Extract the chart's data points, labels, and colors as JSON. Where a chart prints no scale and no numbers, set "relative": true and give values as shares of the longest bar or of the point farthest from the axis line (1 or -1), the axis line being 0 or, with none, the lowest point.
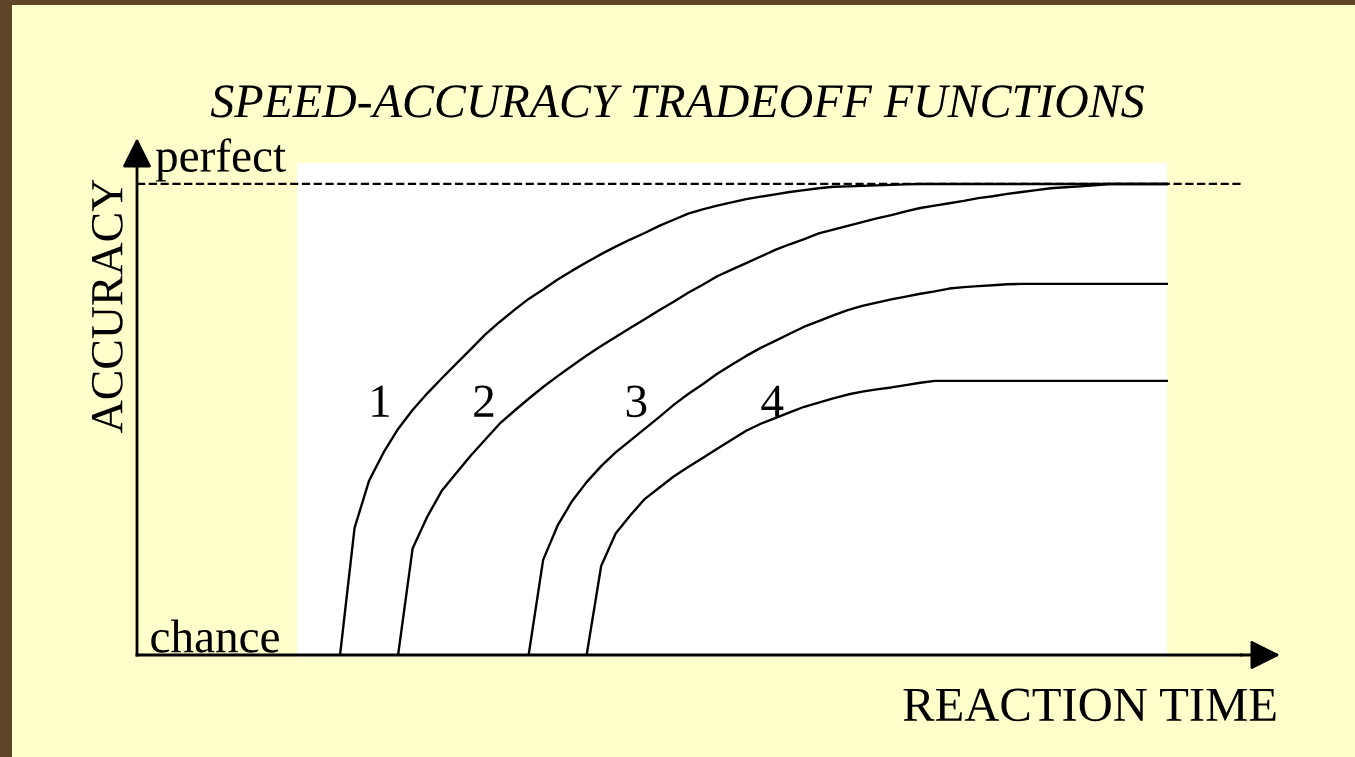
{
  "chart_data": {
    "type": "line",
    "title": "SPEED-ACCURACY TRADEOFF FUNCTIONS",
    "xlabel": "REACTION TIME",
    "ylabel": "ACCURACY",
    "relative": true,
    "categories": [
      null,
      null,
      null,
      null,
      null,
      null,
      null,
      null,
      null,
      null,
      null,
      null,
      null,
      null,
      null,
      null,
      null,
      null,
      null,
      null,
      null,
      null,
      null,
      null,
      null,
      null,
      null,
      null,
      null,
      null,
      null,
      null,
      null,
      null,
      null,
      null,
      null,
      null,
      null,
      null,
      null,
      null,
      null,
      null,
      null,
      null,
      null,
      null,
      null,
      null,
      null,
      null,
      null,
      null,
      null,
      null,
      null,
      null,
      null,
      null,
      null,
      null,
      null,
      null,
      null,
      null,
      null,
      null,
      null,
      null,
      null,
      null
    ],
    "series": [
      {
        "name": "1",
        "color": "#000000",
        "values": [
          null,
          null,
          null,
          null,
          null,
          null,
          null,
          null,
          null,
          null,
          null,
          null,
          null,
          null,
          0,
          0.27,
          0.37,
          0.43,
          0.48,
          0.52,
          0.555,
          0.587,
          0.618,
          0.649,
          0.68,
          0.707,
          0.732,
          0.756,
          0.776,
          0.797,
          0.816,
          0.834,
          0.851,
          0.867,
          0.882,
          0.896,
          0.911,
          0.924,
          0.937,
          0.946,
          0.954,
          0.961,
          0.968,
          0.973,
          0.978,
          0.983,
          0.987,
          0.991,
          0.994,
          0.995,
          0.996,
          0.997,
          0.998,
          0.999,
          1,
          1,
          1,
          1,
          1,
          1,
          1,
          1,
          1,
          1,
          1,
          1,
          1,
          1,
          1,
          1,
          1,
          1
        ]
      },
      {
        "name": "2",
        "color": "#000000",
        "values": [
          null,
          null,
          null,
          null,
          null,
          null,
          null,
          null,
          null,
          null,
          null,
          null,
          null,
          null,
          null,
          null,
          null,
          null,
          0,
          0.226,
          0.293,
          0.348,
          0.386,
          0.423,
          0.457,
          0.491,
          0.518,
          0.544,
          0.569,
          0.592,
          0.614,
          0.636,
          0.656,
          0.675,
          0.694,
          0.713,
          0.732,
          0.75,
          0.769,
          0.786,
          0.804,
          0.818,
          0.832,
          0.846,
          0.86,
          0.872,
          0.883,
          0.895,
          0.903,
          0.911,
          0.919,
          0.927,
          0.934,
          0.942,
          0.949,
          0.954,
          0.959,
          0.964,
          0.97,
          0.974,
          0.979,
          0.983,
          0.987,
          0.991,
          0.993,
          0.995,
          0.997,
          1,
          1,
          1,
          1,
          1
        ]
      },
      {
        "name": "3",
        "color": "#000000",
        "values": [
          null,
          null,
          null,
          null,
          null,
          null,
          null,
          null,
          null,
          null,
          null,
          null,
          null,
          null,
          null,
          null,
          null,
          null,
          null,
          null,
          null,
          null,
          null,
          null,
          null,
          null,
          null,
          0,
          0.202,
          0.275,
          0.327,
          0.367,
          0.401,
          0.43,
          0.455,
          0.48,
          0.505,
          0.531,
          0.554,
          0.575,
          0.597,
          0.616,
          0.635,
          0.652,
          0.667,
          0.682,
          0.697,
          0.709,
          0.721,
          0.732,
          0.741,
          0.748,
          0.755,
          0.761,
          0.767,
          0.772,
          0.778,
          0.781,
          0.783,
          0.785,
          0.787,
          0.788,
          0.788,
          0.788,
          0.788,
          0.788,
          0.788,
          0.788,
          0.788,
          0.788,
          0.788,
          0.788
        ]
      },
      {
        "name": "4",
        "color": "#000000",
        "values": [
          null,
          null,
          null,
          null,
          null,
          null,
          null,
          null,
          null,
          null,
          null,
          null,
          null,
          null,
          null,
          null,
          null,
          null,
          null,
          null,
          null,
          null,
          null,
          null,
          null,
          null,
          null,
          null,
          null,
          null,
          null,
          0,
          0.189,
          0.258,
          0.296,
          0.331,
          0.355,
          0.379,
          0.399,
          0.418,
          0.438,
          0.457,
          0.476,
          0.491,
          0.503,
          0.515,
          0.527,
          0.536,
          0.545,
          0.553,
          0.559,
          0.564,
          0.568,
          0.573,
          0.578,
          0.582,
          0.582,
          0.582,
          0.582,
          0.582,
          0.582,
          0.582,
          0.582,
          0.582,
          0.582,
          0.582,
          0.582,
          0.582,
          0.582,
          0.582,
          0.582,
          0.582
        ]
      }
    ],
    "ref_lines": [
      {
        "axis": "y",
        "value": 1,
        "label": "perfect",
        "line_style": "dashed",
        "color": "#000000"
      }
    ],
    "annotations": [
      "chance"
    ]
  }
}
